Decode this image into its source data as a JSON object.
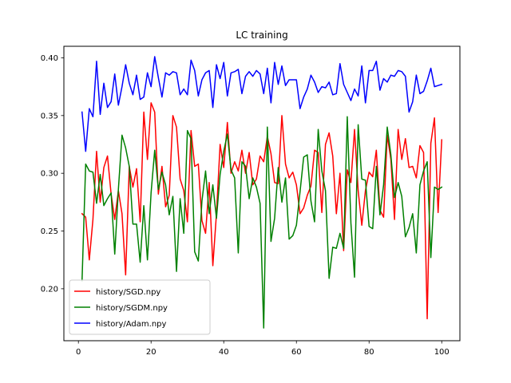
{
  "chart_data": {
    "type": "line",
    "title": "LC training",
    "xlabel": "",
    "ylabel": "",
    "xlim": [
      -4,
      105
    ],
    "ylim": [
      0.155,
      0.41
    ],
    "xticks": [
      0,
      20,
      40,
      60,
      80,
      100
    ],
    "yticks": [
      0.2,
      0.25,
      0.3,
      0.35,
      0.4
    ],
    "xtick_labels": [
      "0",
      "20",
      "40",
      "60",
      "80",
      "100"
    ],
    "ytick_labels": [
      "0.20",
      "0.25",
      "0.30",
      "0.35",
      "0.40"
    ],
    "grid": false,
    "legend_position": "bottom-left",
    "x": [
      1,
      2,
      3,
      4,
      5,
      6,
      7,
      8,
      9,
      10,
      11,
      12,
      13,
      14,
      15,
      16,
      17,
      18,
      19,
      20,
      21,
      22,
      23,
      24,
      25,
      26,
      27,
      28,
      29,
      30,
      31,
      32,
      33,
      34,
      35,
      36,
      37,
      38,
      39,
      40,
      41,
      42,
      43,
      44,
      45,
      46,
      47,
      48,
      49,
      50,
      51,
      52,
      53,
      54,
      55,
      56,
      57,
      58,
      59,
      60,
      61,
      62,
      63,
      64,
      65,
      66,
      67,
      68,
      69,
      70,
      71,
      72,
      73,
      74,
      75,
      76,
      77,
      78,
      79,
      80,
      81,
      82,
      83,
      84,
      85,
      86,
      87,
      88,
      89,
      90,
      91,
      92,
      93,
      94,
      95,
      96,
      97,
      98,
      99,
      100
    ],
    "series": [
      {
        "name": "history/SGD.npy",
        "color": "#ff0000",
        "values": [
          0.265,
          0.262,
          0.225,
          0.26,
          0.319,
          0.275,
          0.305,
          0.315,
          0.282,
          0.26,
          0.285,
          0.265,
          0.212,
          0.306,
          0.288,
          0.304,
          0.258,
          0.353,
          0.312,
          0.361,
          0.353,
          0.282,
          0.306,
          0.271,
          0.281,
          0.35,
          0.34,
          0.295,
          0.285,
          0.258,
          0.337,
          0.306,
          0.308,
          0.259,
          0.248,
          0.292,
          0.22,
          0.265,
          0.325,
          0.305,
          0.344,
          0.3,
          0.31,
          0.302,
          0.32,
          0.3,
          0.318,
          0.29,
          0.295,
          0.315,
          0.31,
          0.332,
          0.317,
          0.292,
          0.291,
          0.35,
          0.308,
          0.296,
          0.301,
          0.29,
          0.265,
          0.27,
          0.281,
          0.289,
          0.32,
          0.318,
          0.266,
          0.325,
          0.335,
          0.315,
          0.265,
          0.3,
          0.233,
          0.303,
          0.292,
          0.338,
          0.285,
          0.255,
          0.285,
          0.301,
          0.297,
          0.32,
          0.268,
          0.262,
          0.333,
          0.312,
          0.26,
          0.338,
          0.312,
          0.33,
          0.305,
          0.306,
          0.296,
          0.324,
          0.318,
          0.174,
          0.326,
          0.348,
          0.266,
          0.329
        ]
      },
      {
        "name": "history/SGDM.npy",
        "color": "#008000",
        "values": [
          0.207,
          0.308,
          0.302,
          0.301,
          0.274,
          0.299,
          0.272,
          0.278,
          0.283,
          0.23,
          0.286,
          0.333,
          0.322,
          0.306,
          0.256,
          0.256,
          0.223,
          0.272,
          0.225,
          0.283,
          0.32,
          0.286,
          0.301,
          0.29,
          0.264,
          0.28,
          0.215,
          0.278,
          0.248,
          0.337,
          0.33,
          0.232,
          0.224,
          0.276,
          0.302,
          0.265,
          0.29,
          0.261,
          0.299,
          0.319,
          0.334,
          0.303,
          0.296,
          0.231,
          0.31,
          0.306,
          0.278,
          0.296,
          0.288,
          0.274,
          0.166,
          0.34,
          0.241,
          0.261,
          0.305,
          0.275,
          0.296,
          0.243,
          0.246,
          0.255,
          0.284,
          0.314,
          0.316,
          0.276,
          0.258,
          0.338,
          0.302,
          0.285,
          0.209,
          0.236,
          0.235,
          0.248,
          0.235,
          0.349,
          0.257,
          0.21,
          0.342,
          0.295,
          0.294,
          0.254,
          0.252,
          0.306,
          0.264,
          0.29,
          0.34,
          0.316,
          0.279,
          0.292,
          0.28,
          0.245,
          0.253,
          0.265,
          0.231,
          0.29,
          0.302,
          0.31,
          0.227,
          0.288,
          0.286,
          0.288
        ]
      },
      {
        "name": "history/Adam.npy",
        "color": "#0000ff",
        "values": [
          0.353,
          0.319,
          0.356,
          0.349,
          0.397,
          0.351,
          0.378,
          0.357,
          0.362,
          0.386,
          0.359,
          0.375,
          0.394,
          0.378,
          0.368,
          0.385,
          0.364,
          0.366,
          0.387,
          0.375,
          0.401,
          0.383,
          0.366,
          0.387,
          0.385,
          0.388,
          0.387,
          0.368,
          0.373,
          0.368,
          0.398,
          0.389,
          0.367,
          0.381,
          0.387,
          0.389,
          0.357,
          0.394,
          0.382,
          0.396,
          0.367,
          0.387,
          0.388,
          0.39,
          0.369,
          0.384,
          0.388,
          0.384,
          0.389,
          0.386,
          0.369,
          0.391,
          0.361,
          0.396,
          0.377,
          0.393,
          0.376,
          0.381,
          0.381,
          0.381,
          0.356,
          0.366,
          0.373,
          0.385,
          0.379,
          0.37,
          0.375,
          0.374,
          0.379,
          0.368,
          0.369,
          0.395,
          0.377,
          0.37,
          0.363,
          0.373,
          0.367,
          0.393,
          0.361,
          0.389,
          0.389,
          0.397,
          0.372,
          0.382,
          0.379,
          0.385,
          0.384,
          0.389,
          0.388,
          0.384,
          0.353,
          0.362,
          0.385,
          0.369,
          0.371,
          0.38,
          0.391,
          0.375,
          0.376,
          0.377
        ]
      }
    ]
  }
}
